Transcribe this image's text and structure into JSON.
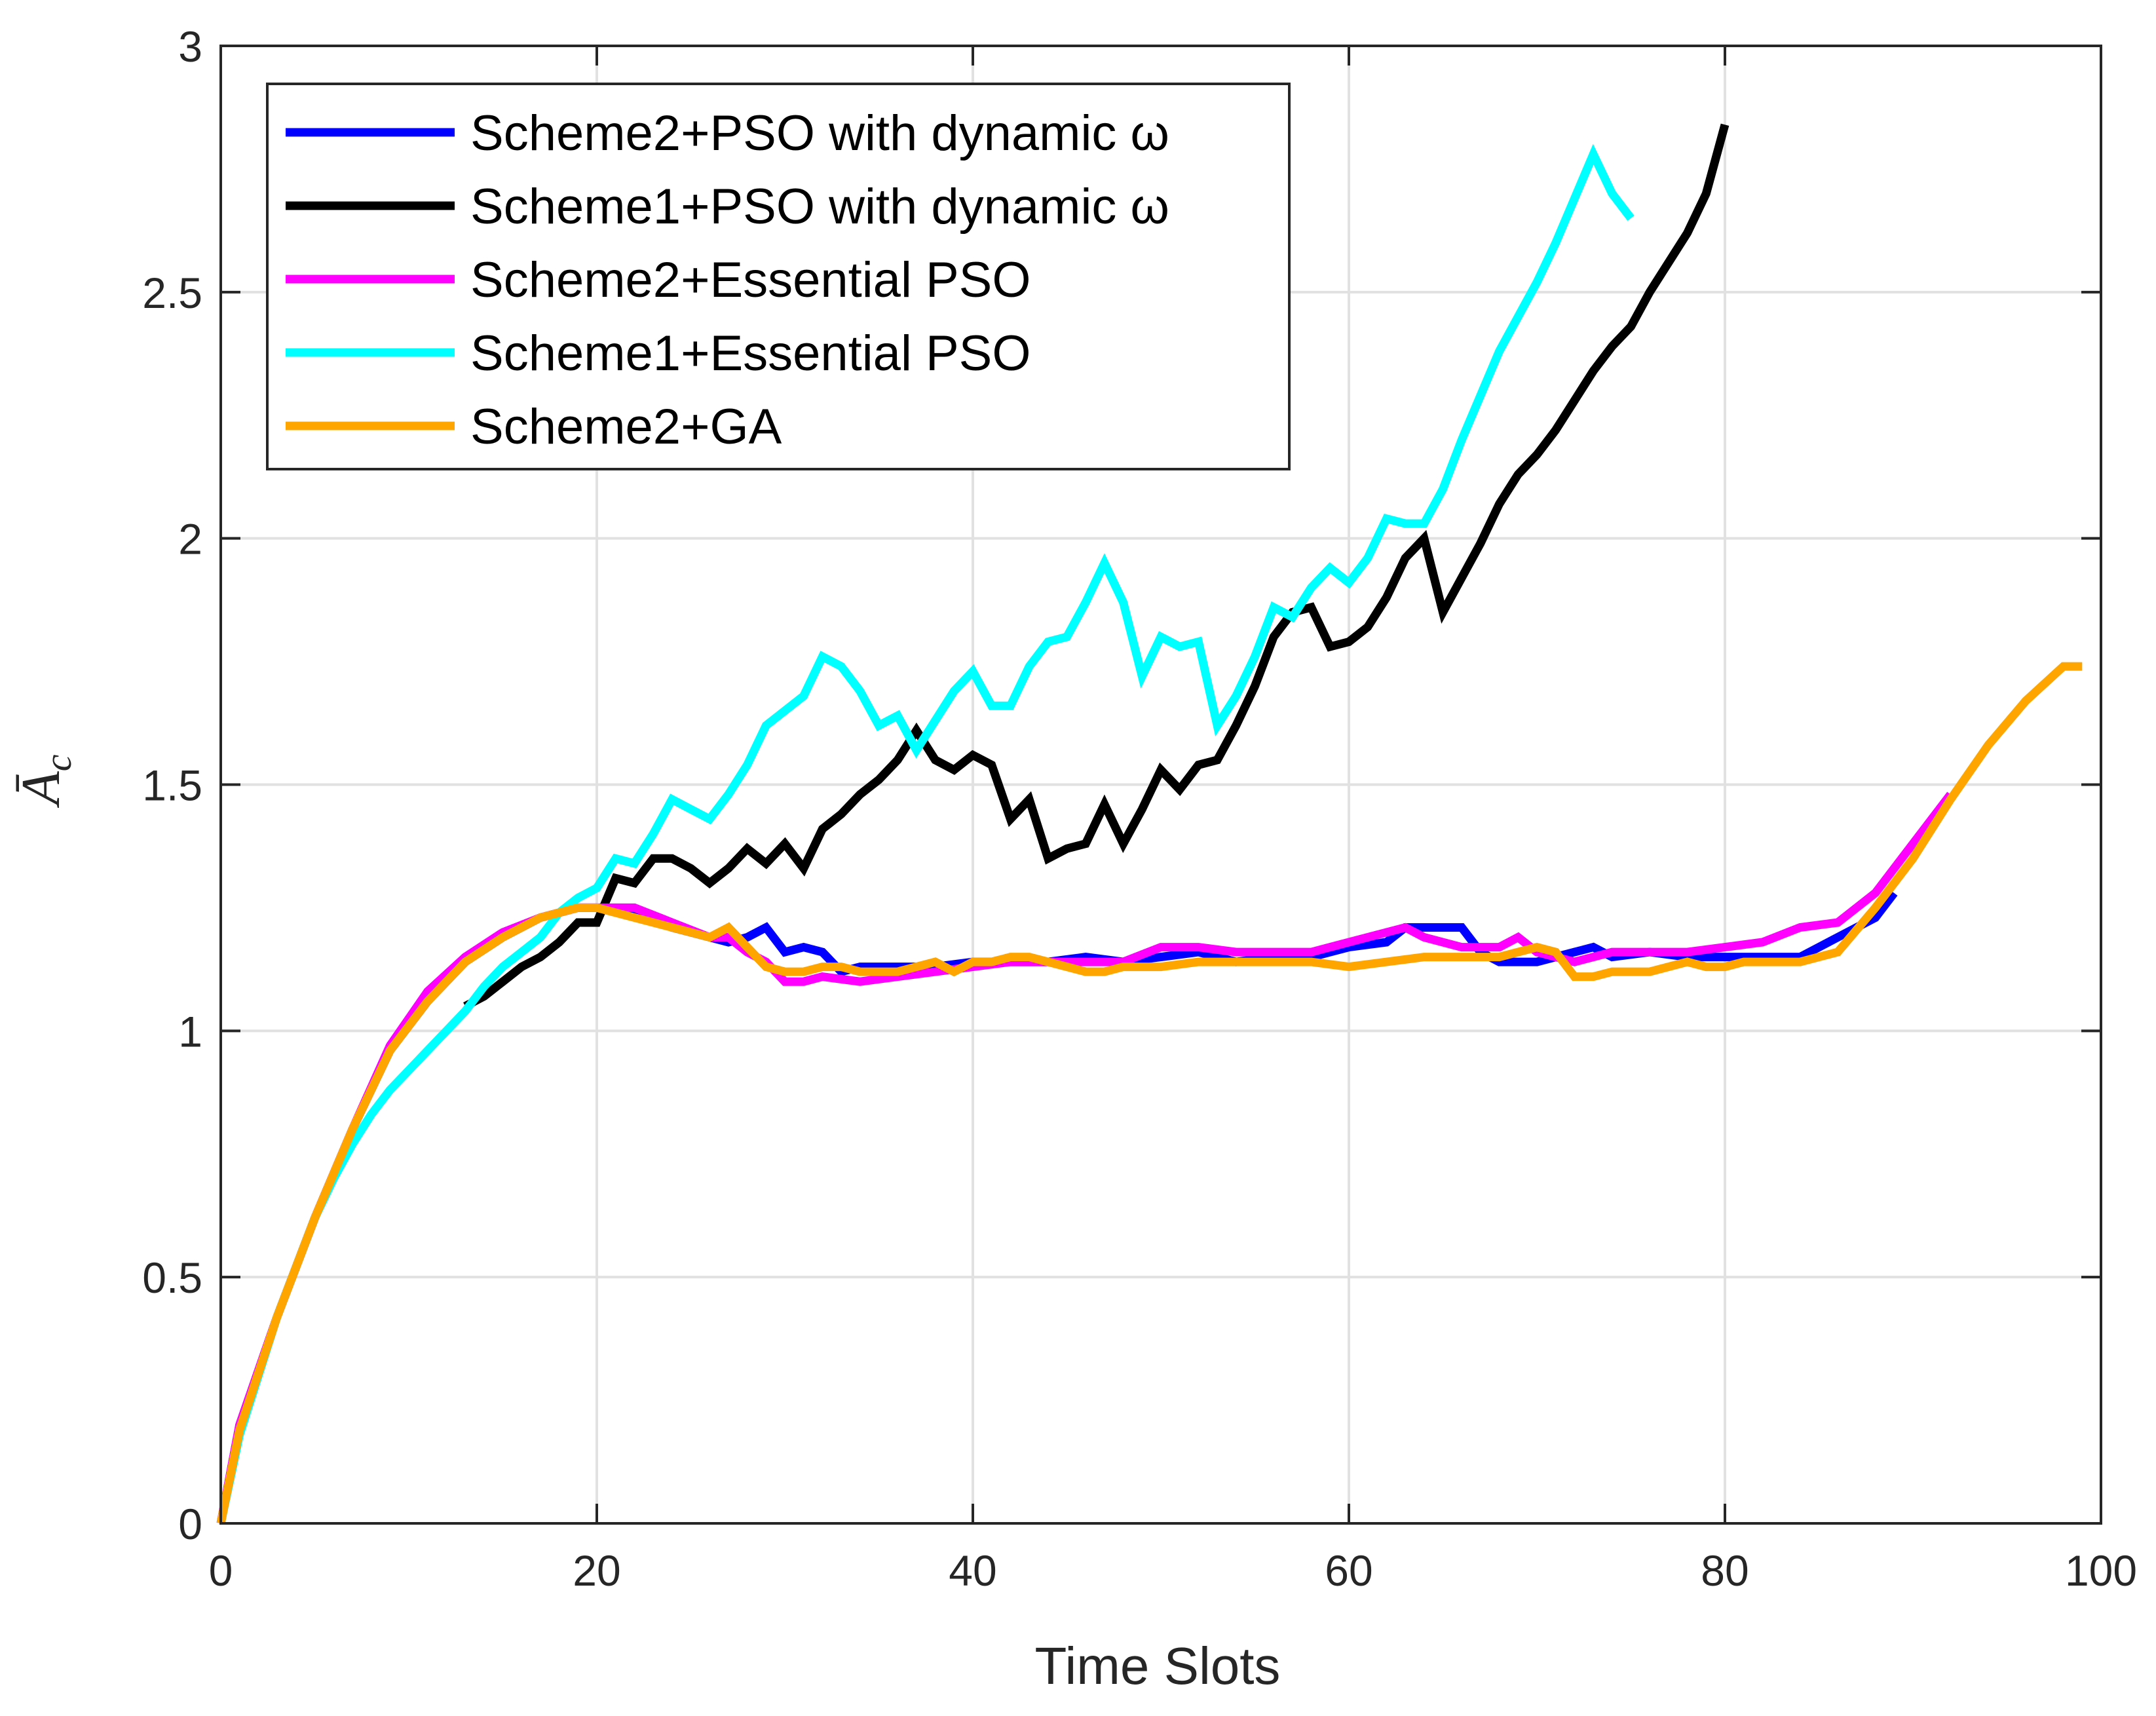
{
  "chart_data": {
    "type": "line",
    "title": "",
    "xlabel": "Time Slots",
    "ylabel": "Ā",
    "ylabel_subscript": "c",
    "xlim": [
      0,
      100
    ],
    "ylim": [
      0,
      3
    ],
    "xticks": [
      0,
      20,
      40,
      60,
      80,
      100
    ],
    "yticks": [
      0,
      0.5,
      1,
      1.5,
      2,
      2.5,
      3
    ],
    "xtick_labels": [
      "0",
      "20",
      "40",
      "60",
      "80",
      "100"
    ],
    "ytick_labels": [
      "0",
      "0.5",
      "1",
      "1.5",
      "2",
      "2.5",
      "3"
    ],
    "grid": true,
    "legend_position": "top-left",
    "series": [
      {
        "name": "Scheme2+PSO with dynamic ω",
        "color": "#0000ff",
        "x": [
          0,
          1,
          3,
          5,
          7,
          9,
          11,
          13,
          15,
          17,
          19,
          20,
          22,
          24,
          26,
          27,
          28,
          29,
          30,
          31,
          32,
          33,
          34,
          36,
          38,
          40,
          42,
          44,
          46,
          48,
          50,
          52,
          54,
          56,
          58,
          60,
          62,
          63,
          64,
          65,
          66,
          67,
          68,
          70,
          72,
          73,
          74,
          76,
          78,
          80,
          82,
          84,
          86,
          88,
          89
        ],
        "y": [
          0,
          0.2,
          0.42,
          0.62,
          0.8,
          0.96,
          1.06,
          1.14,
          1.19,
          1.23,
          1.25,
          1.25,
          1.24,
          1.21,
          1.19,
          1.18,
          1.19,
          1.21,
          1.16,
          1.17,
          1.16,
          1.12,
          1.13,
          1.13,
          1.13,
          1.14,
          1.14,
          1.14,
          1.15,
          1.14,
          1.15,
          1.16,
          1.14,
          1.15,
          1.15,
          1.17,
          1.18,
          1.21,
          1.21,
          1.21,
          1.21,
          1.16,
          1.14,
          1.14,
          1.16,
          1.17,
          1.15,
          1.16,
          1.15,
          1.15,
          1.15,
          1.15,
          1.19,
          1.23,
          1.28
        ]
      },
      {
        "name": "Scheme1+PSO with dynamic ω",
        "color": "#000000",
        "x": [
          13,
          14,
          15,
          16,
          17,
          18,
          19,
          20,
          21,
          22,
          23,
          24,
          25,
          26,
          27,
          28,
          29,
          30,
          31,
          32,
          33,
          34,
          35,
          36,
          37,
          38,
          39,
          40,
          41,
          42,
          43,
          44,
          45,
          46,
          47,
          48,
          49,
          50,
          51,
          52,
          53,
          54,
          55,
          56,
          57,
          58,
          59,
          60,
          61,
          62,
          63,
          64,
          65,
          66,
          67,
          68,
          69,
          70,
          71,
          72,
          73,
          74,
          75,
          76,
          77,
          78,
          79,
          80
        ],
        "y": [
          1.05,
          1.07,
          1.1,
          1.13,
          1.15,
          1.18,
          1.22,
          1.22,
          1.31,
          1.3,
          1.35,
          1.35,
          1.33,
          1.3,
          1.33,
          1.37,
          1.34,
          1.38,
          1.33,
          1.41,
          1.44,
          1.48,
          1.51,
          1.55,
          1.61,
          1.55,
          1.53,
          1.56,
          1.54,
          1.43,
          1.47,
          1.35,
          1.37,
          1.38,
          1.46,
          1.38,
          1.45,
          1.53,
          1.49,
          1.54,
          1.55,
          1.62,
          1.7,
          1.8,
          1.85,
          1.86,
          1.78,
          1.79,
          1.82,
          1.88,
          1.96,
          2.0,
          1.85,
          1.92,
          1.99,
          2.07,
          2.13,
          2.17,
          2.22,
          2.28,
          2.34,
          2.39,
          2.43,
          2.5,
          2.56,
          2.62,
          2.7,
          2.84
        ]
      },
      {
        "name": "Scheme2+Essential PSO",
        "color": "#ff00ff",
        "x": [
          0,
          1,
          3,
          5,
          7,
          9,
          11,
          13,
          15,
          17,
          19,
          20,
          22,
          24,
          26,
          27,
          28,
          29,
          30,
          31,
          32,
          34,
          36,
          38,
          40,
          42,
          44,
          46,
          48,
          50,
          52,
          54,
          56,
          58,
          60,
          62,
          63,
          64,
          66,
          68,
          69,
          70,
          72,
          74,
          76,
          78,
          80,
          82,
          84,
          86,
          88,
          90,
          92
        ],
        "y": [
          0,
          0.2,
          0.42,
          0.62,
          0.8,
          0.97,
          1.08,
          1.15,
          1.2,
          1.23,
          1.25,
          1.25,
          1.25,
          1.22,
          1.19,
          1.19,
          1.16,
          1.14,
          1.1,
          1.1,
          1.11,
          1.1,
          1.11,
          1.12,
          1.13,
          1.14,
          1.14,
          1.14,
          1.14,
          1.17,
          1.17,
          1.16,
          1.16,
          1.16,
          1.18,
          1.2,
          1.21,
          1.19,
          1.17,
          1.17,
          1.19,
          1.16,
          1.14,
          1.16,
          1.16,
          1.16,
          1.17,
          1.18,
          1.21,
          1.22,
          1.28,
          1.38,
          1.48
        ]
      },
      {
        "name": "Scheme1+Essential PSO",
        "color": "#00ffff",
        "x": [
          0,
          1,
          2,
          3,
          4,
          5,
          6,
          7,
          8,
          9,
          10,
          11,
          12,
          13,
          14,
          15,
          16,
          17,
          18,
          19,
          20,
          21,
          22,
          23,
          24,
          25,
          26,
          27,
          28,
          29,
          30,
          31,
          32,
          33,
          34,
          35,
          36,
          37,
          38,
          39,
          40,
          41,
          42,
          43,
          44,
          45,
          46,
          47,
          48,
          49,
          50,
          51,
          52,
          53,
          54,
          55,
          56,
          57,
          58,
          59,
          60,
          61,
          62,
          63,
          64,
          65,
          66,
          67,
          68,
          69,
          70,
          71,
          72,
          73,
          74,
          75
        ],
        "y": [
          0,
          0.18,
          0.3,
          0.42,
          0.52,
          0.62,
          0.7,
          0.77,
          0.83,
          0.88,
          0.92,
          0.96,
          1.0,
          1.04,
          1.09,
          1.13,
          1.16,
          1.19,
          1.24,
          1.27,
          1.29,
          1.35,
          1.34,
          1.4,
          1.47,
          1.45,
          1.43,
          1.48,
          1.54,
          1.62,
          1.65,
          1.68,
          1.76,
          1.74,
          1.69,
          1.62,
          1.64,
          1.57,
          1.63,
          1.69,
          1.73,
          1.66,
          1.66,
          1.74,
          1.79,
          1.8,
          1.87,
          1.95,
          1.87,
          1.72,
          1.8,
          1.78,
          1.79,
          1.62,
          1.68,
          1.76,
          1.86,
          1.84,
          1.9,
          1.94,
          1.91,
          1.96,
          2.04,
          2.03,
          2.03,
          2.1,
          2.2,
          2.29,
          2.38,
          2.45,
          2.52,
          2.6,
          2.69,
          2.78,
          2.7,
          2.65
        ]
      },
      {
        "name": "Scheme2+GA",
        "color": "#ffa500",
        "x": [
          0,
          1,
          3,
          5,
          7,
          9,
          11,
          13,
          15,
          17,
          19,
          20,
          22,
          24,
          26,
          27,
          28,
          29,
          30,
          31,
          32,
          33,
          34,
          35,
          36,
          37,
          38,
          39,
          40,
          41,
          42,
          43,
          44,
          45,
          46,
          47,
          48,
          50,
          52,
          54,
          56,
          58,
          60,
          62,
          64,
          66,
          68,
          70,
          71,
          72,
          73,
          74,
          75,
          76,
          77,
          78,
          79,
          80,
          81,
          82,
          83,
          84,
          85,
          86,
          88,
          90,
          92,
          94,
          96,
          98,
          99
        ],
        "y": [
          0,
          0.19,
          0.42,
          0.62,
          0.8,
          0.96,
          1.06,
          1.14,
          1.19,
          1.23,
          1.25,
          1.25,
          1.23,
          1.21,
          1.19,
          1.21,
          1.17,
          1.13,
          1.12,
          1.12,
          1.13,
          1.13,
          1.12,
          1.12,
          1.12,
          1.13,
          1.14,
          1.12,
          1.14,
          1.14,
          1.15,
          1.15,
          1.14,
          1.13,
          1.12,
          1.12,
          1.13,
          1.13,
          1.14,
          1.14,
          1.14,
          1.14,
          1.13,
          1.14,
          1.15,
          1.15,
          1.15,
          1.17,
          1.16,
          1.11,
          1.11,
          1.12,
          1.12,
          1.12,
          1.13,
          1.14,
          1.13,
          1.13,
          1.14,
          1.14,
          1.14,
          1.14,
          1.15,
          1.16,
          1.25,
          1.35,
          1.47,
          1.58,
          1.67,
          1.74,
          1.74
        ]
      }
    ]
  }
}
